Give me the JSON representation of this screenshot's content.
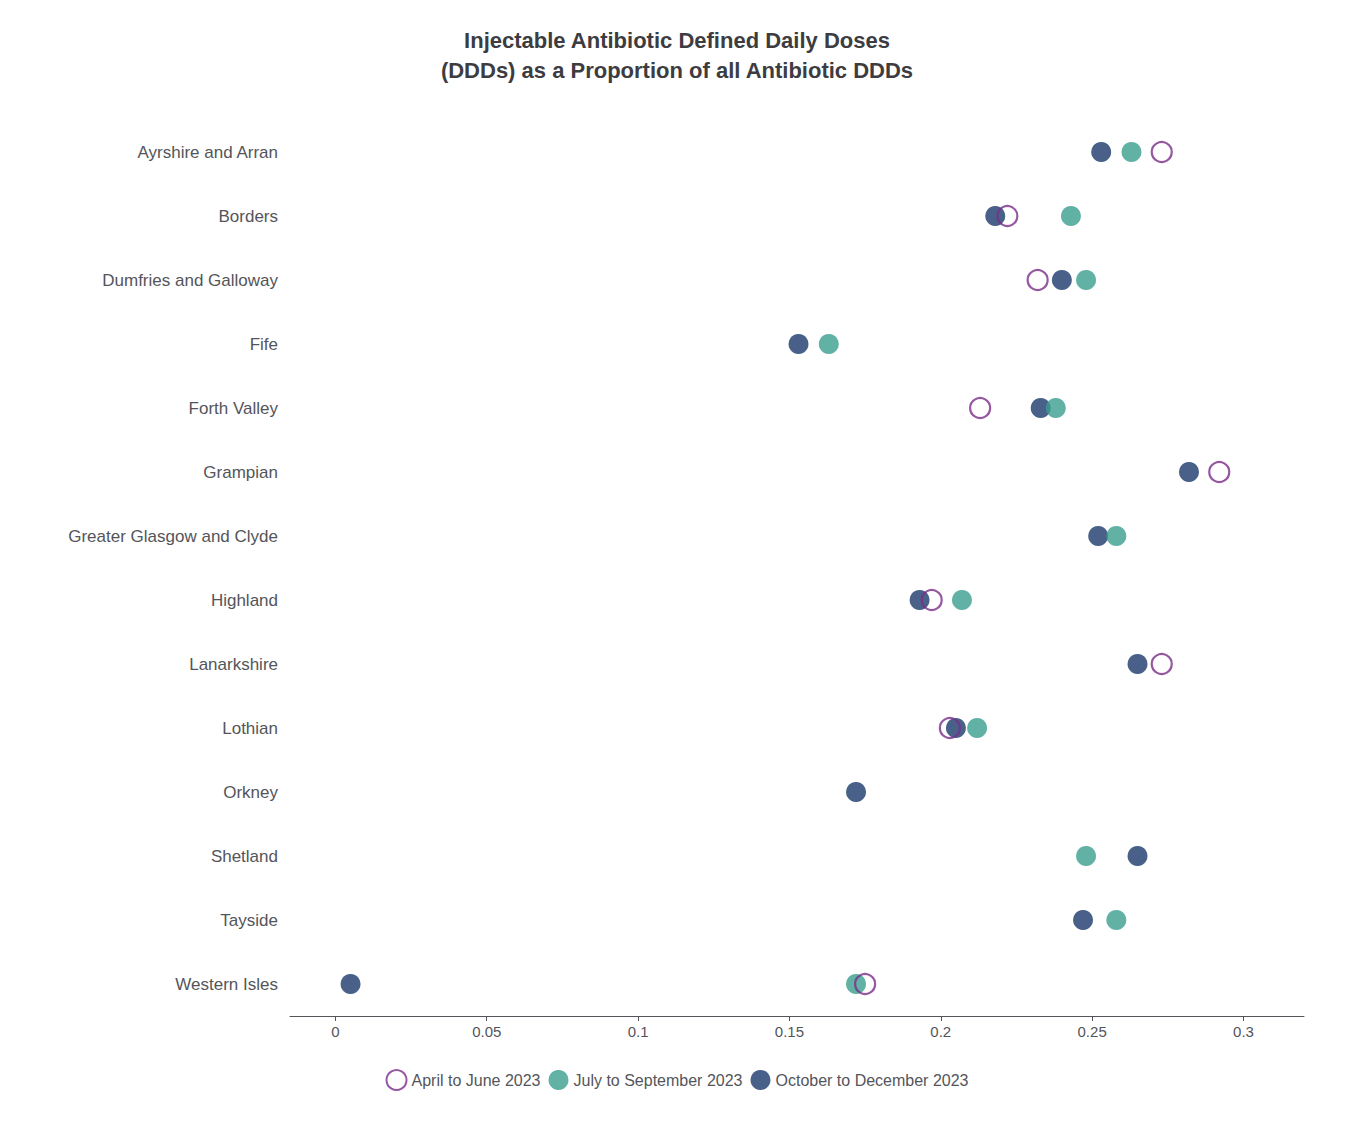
{
  "chart_data": {
    "type": "scatter",
    "title": "Injectable Antibiotic Defined Daily Doses\n(DDDs) as a Proportion of all Antibiotic DDDs",
    "categories": [
      "Ayrshire and Arran",
      "Borders",
      "Dumfries and Galloway",
      "Fife",
      "Forth Valley",
      "Grampian",
      "Greater Glasgow and Clyde",
      "Highland",
      "Lanarkshire",
      "Lothian",
      "Orkney",
      "Shetland",
      "Tayside",
      "Western Isles"
    ],
    "series": [
      {
        "name": "April to June 2023",
        "color": "#7B2D8B",
        "marker": "open circle",
        "values": [
          0.273,
          0.222,
          0.232,
          null,
          0.213,
          0.292,
          null,
          0.197,
          0.273,
          0.203,
          null,
          null,
          null,
          0.175
        ]
      },
      {
        "name": "July to September 2023",
        "color": "#3A9E8F",
        "marker": "circle",
        "values": [
          0.263,
          0.243,
          0.248,
          0.163,
          0.238,
          null,
          0.258,
          0.207,
          null,
          0.212,
          null,
          0.248,
          0.258,
          0.172
        ]
      },
      {
        "name": "October to December 2023",
        "color": "#1B3A6B",
        "marker": "circle",
        "values": [
          0.253,
          0.218,
          0.24,
          0.153,
          0.233,
          0.282,
          0.252,
          0.193,
          0.265,
          0.205,
          0.172,
          0.265,
          0.247,
          0.005
        ]
      }
    ],
    "xlim": [
      -0.015,
      0.32
    ],
    "xticks": [
      0,
      0.05,
      0.1,
      0.15,
      0.2,
      0.25,
      0.3
    ],
    "grid": false,
    "legend": "bottom"
  }
}
